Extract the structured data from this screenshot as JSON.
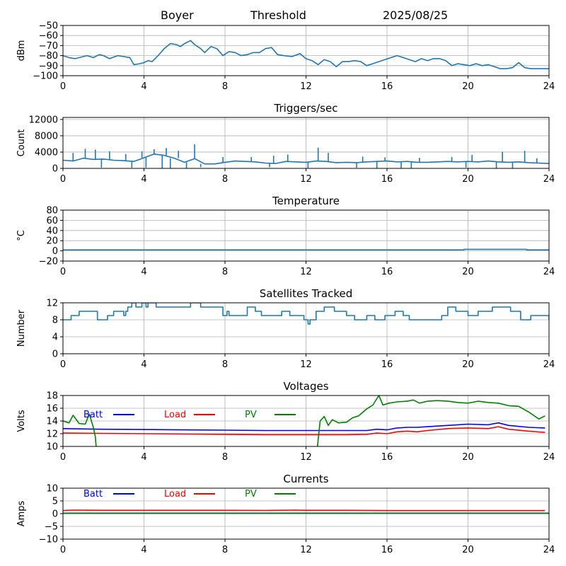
{
  "header": {
    "station": "Boyer",
    "mode": "Threshold",
    "date": "2025/08/25"
  },
  "colors": {
    "series": "#1f77b4",
    "batt": "#0000ff",
    "load": "#ff0000",
    "pv": "#008000",
    "grid": "#b0b0b0"
  },
  "chart_data": [
    {
      "type": "line",
      "title": "",
      "xlabel": "",
      "ylabel": "dBm",
      "xlim": [
        0,
        24
      ],
      "ylim": [
        -100,
        -50
      ],
      "xticks": [
        0,
        4,
        8,
        12,
        16,
        20,
        24
      ],
      "yticks": [
        -100,
        -90,
        -80,
        -70,
        -60,
        -50
      ],
      "grid": true,
      "series": [
        {
          "x": [
            0,
            0.3,
            0.6,
            1,
            1.2,
            1.5,
            1.8,
            2,
            2.3,
            2.7,
            3,
            3.3,
            3.5,
            3.8,
            4,
            4.2,
            4.4,
            4.7,
            5,
            5.3,
            5.6,
            5.8,
            6,
            6.3,
            6.5,
            6.8,
            7,
            7.3,
            7.6,
            7.9,
            8.2,
            8.5,
            8.8,
            9.1,
            9.4,
            9.7,
            10,
            10.3,
            10.6,
            10.9,
            11.3,
            11.7,
            12,
            12.3,
            12.6,
            12.9,
            13.2,
            13.5,
            13.8,
            14.1,
            14.4,
            14.7,
            15,
            15.3,
            15.6,
            15.9,
            16.2,
            16.5,
            16.8,
            17.1,
            17.4,
            17.7,
            18,
            18.3,
            18.6,
            18.9,
            19.2,
            19.5,
            19.8,
            20.1,
            20.4,
            20.7,
            21,
            21.3,
            21.6,
            21.9,
            22.2,
            22.5,
            22.8,
            23.1,
            23.5,
            24
          ],
          "y": [
            -80,
            -82,
            -83,
            -81,
            -80,
            -82,
            -79,
            -80,
            -83,
            -80,
            -81,
            -82,
            -89,
            -88,
            -87,
            -85,
            -86,
            -80,
            -73,
            -68,
            -69,
            -71,
            -68,
            -65,
            -69,
            -73,
            -77,
            -71,
            -73,
            -80,
            -76,
            -77,
            -80,
            -79,
            -77,
            -77,
            -73,
            -72,
            -79,
            -80,
            -81,
            -78,
            -83,
            -85,
            -89,
            -84,
            -86,
            -91,
            -86,
            -86,
            -85,
            -86,
            -90,
            -88,
            -86,
            -84,
            -82,
            -80,
            -82,
            -84,
            -86,
            -83,
            -85,
            -83,
            -83,
            -85,
            -90,
            -88,
            -89,
            -90,
            -88,
            -90,
            -89,
            -91,
            -93,
            -93,
            -92,
            -87,
            -92,
            -93,
            -93,
            -93
          ]
        }
      ]
    },
    {
      "type": "line",
      "title": "Triggers/sec",
      "xlabel": "",
      "ylabel": "Count",
      "xlim": [
        0,
        24
      ],
      "ylim": [
        0,
        12500
      ],
      "xticks": [
        0,
        4,
        8,
        12,
        16,
        20,
        24
      ],
      "yticks": [
        0,
        4000,
        8000,
        12000
      ],
      "yticklabels": [
        "0",
        "4000",
        "8000",
        "12000"
      ],
      "grid": true,
      "series": [
        {
          "x": [
            0,
            0.5,
            1,
            1.5,
            2,
            2.5,
            3,
            3.5,
            4,
            4.5,
            5,
            5.5,
            6,
            6.5,
            7,
            7.5,
            8,
            8.5,
            9,
            9.5,
            10,
            10.5,
            11,
            11.5,
            12,
            12.5,
            13,
            13.5,
            14,
            14.5,
            15,
            15.5,
            16,
            16.5,
            17,
            17.5,
            18,
            18.5,
            19,
            19.5,
            20,
            20.5,
            21,
            21.5,
            22,
            22.5,
            23,
            23.5,
            24
          ],
          "y": [
            2000,
            1800,
            2500,
            2200,
            2300,
            2000,
            1900,
            1700,
            2600,
            3500,
            3200,
            2500,
            1500,
            2400,
            1100,
            1100,
            1500,
            1800,
            1700,
            1600,
            1300,
            1200,
            1700,
            1600,
            1500,
            1800,
            1700,
            1400,
            1500,
            1400,
            1600,
            1700,
            1800,
            1600,
            1700,
            1500,
            1500,
            1600,
            1700,
            1600,
            1700,
            1600,
            1800,
            1600,
            1500,
            1600,
            1400,
            1300,
            1200
          ],
          "spikes": [
            {
              "x": 0.5,
              "y": 3800
            },
            {
              "x": 1.1,
              "y": 4800
            },
            {
              "x": 1.6,
              "y": 4600
            },
            {
              "x": 2.3,
              "y": 4200
            },
            {
              "x": 3.1,
              "y": 3500
            },
            {
              "x": 3.9,
              "y": 4200
            },
            {
              "x": 4.5,
              "y": 4700
            },
            {
              "x": 5.1,
              "y": 5000
            },
            {
              "x": 5.7,
              "y": 4300
            },
            {
              "x": 6.5,
              "y": 5900
            },
            {
              "x": 7.9,
              "y": 2800
            },
            {
              "x": 9.3,
              "y": 2800
            },
            {
              "x": 10.4,
              "y": 3100
            },
            {
              "x": 11.1,
              "y": 3400
            },
            {
              "x": 12.6,
              "y": 5100
            },
            {
              "x": 13.1,
              "y": 3800
            },
            {
              "x": 14.8,
              "y": 2900
            },
            {
              "x": 15.9,
              "y": 2700
            },
            {
              "x": 17.6,
              "y": 2600
            },
            {
              "x": 19.2,
              "y": 2800
            },
            {
              "x": 20.2,
              "y": 3300
            },
            {
              "x": 21.7,
              "y": 4100
            },
            {
              "x": 22.8,
              "y": 4300
            },
            {
              "x": 23.4,
              "y": 2500
            }
          ],
          "dips": [
            {
              "x": 1.9,
              "y": 200
            },
            {
              "x": 3.4,
              "y": 150
            },
            {
              "x": 4.1,
              "y": 200
            },
            {
              "x": 4.9,
              "y": 0
            },
            {
              "x": 5.3,
              "y": 0
            },
            {
              "x": 6.1,
              "y": 0
            },
            {
              "x": 6.8,
              "y": 300
            },
            {
              "x": 10.2,
              "y": 300
            },
            {
              "x": 12.1,
              "y": 100
            },
            {
              "x": 14.5,
              "y": 150
            },
            {
              "x": 15.5,
              "y": 0
            },
            {
              "x": 16.7,
              "y": 100
            },
            {
              "x": 17.2,
              "y": 0
            },
            {
              "x": 19.9,
              "y": 200
            },
            {
              "x": 21.4,
              "y": 0
            },
            {
              "x": 22.2,
              "y": 0
            }
          ]
        }
      ]
    },
    {
      "type": "line",
      "title": "Temperature",
      "xlabel": "",
      "ylabel": "°C",
      "xlim": [
        0,
        24
      ],
      "ylim": [
        -20,
        80
      ],
      "xticks": [
        0,
        4,
        8,
        12,
        16,
        20,
        24
      ],
      "yticks": [
        -20,
        0,
        20,
        40,
        60,
        80
      ],
      "grid": true,
      "series": [
        {
          "x": [
            0,
            19.8,
            19.8,
            22.9,
            22.9,
            24
          ],
          "y": [
            2,
            2,
            3,
            3,
            2,
            2
          ]
        }
      ]
    },
    {
      "type": "line",
      "title": "Satellites Tracked",
      "xlabel": "",
      "ylabel": "Number",
      "xlim": [
        0,
        24
      ],
      "ylim": [
        0,
        12
      ],
      "xticks": [
        0,
        4,
        8,
        12,
        16,
        20,
        24
      ],
      "yticks": [
        0,
        4,
        8,
        12
      ],
      "grid": true,
      "series": [
        {
          "step": true,
          "x": [
            0,
            0.4,
            0.8,
            1.2,
            1.7,
            2.2,
            2.5,
            3,
            3.1,
            3.2,
            3.4,
            3.6,
            3.9,
            4.1,
            4.2,
            4.6,
            5,
            5.6,
            6.3,
            6.8,
            7,
            7.3,
            7.9,
            8.1,
            8.2,
            8.5,
            9.1,
            9.5,
            9.8,
            10.2,
            10.8,
            11.2,
            11.8,
            11.9,
            12.1,
            12.2,
            12.5,
            12.9,
            13.4,
            14,
            14.4,
            15,
            15.4,
            15.9,
            16.4,
            16.8,
            17.1,
            17.7,
            18.7,
            19,
            19.4,
            20,
            20.5,
            21.2,
            22.1,
            22.6,
            23.1,
            23.8,
            24
          ],
          "y": [
            8,
            9,
            10,
            10,
            8,
            9,
            10,
            9,
            10,
            11,
            12,
            11,
            12,
            11,
            12,
            11,
            11,
            11,
            12,
            11,
            11,
            11,
            9,
            10,
            9,
            9,
            11,
            10,
            9,
            9,
            10,
            9,
            9,
            8,
            7,
            8,
            10,
            11,
            10,
            9,
            8,
            9,
            8,
            9,
            10,
            9,
            8,
            8,
            9,
            11,
            10,
            9,
            10,
            11,
            10,
            8,
            9,
            9,
            8
          ]
        }
      ]
    },
    {
      "type": "line",
      "title": "Voltages",
      "xlabel": "",
      "ylabel": "Volts",
      "xlim": [
        0,
        24
      ],
      "ylim": [
        10,
        18
      ],
      "xticks": [
        0,
        4,
        8,
        12,
        16,
        20,
        24
      ],
      "yticks": [
        10,
        12,
        14,
        16,
        18
      ],
      "grid": true,
      "legend": "top-left",
      "series": [
        {
          "name": "Batt",
          "color": "#0000ff",
          "x": [
            0,
            2,
            4,
            6,
            8,
            10,
            11.5,
            12,
            13,
            14,
            15,
            15.5,
            16,
            16.5,
            17,
            17.5,
            18,
            19,
            20,
            21,
            21.5,
            22,
            23,
            23.8
          ],
          "y": [
            12.8,
            12.7,
            12.65,
            12.6,
            12.55,
            12.5,
            12.5,
            12.5,
            12.5,
            12.5,
            12.5,
            12.7,
            12.6,
            12.9,
            13.0,
            13.0,
            13.1,
            13.3,
            13.5,
            13.4,
            13.7,
            13.3,
            13.0,
            12.9
          ]
        },
        {
          "name": "Load",
          "color": "#ff0000",
          "x": [
            0,
            2,
            4,
            6,
            8,
            10,
            11.5,
            12,
            13,
            14,
            15,
            15.5,
            16,
            16.5,
            17,
            17.5,
            18,
            19,
            20,
            21,
            21.5,
            22,
            23,
            23.8
          ],
          "y": [
            12.1,
            12.05,
            12.0,
            11.95,
            11.9,
            11.85,
            11.85,
            11.85,
            11.85,
            11.85,
            11.9,
            12.1,
            12.0,
            12.3,
            12.4,
            12.3,
            12.5,
            12.8,
            12.9,
            12.8,
            13.1,
            12.7,
            12.4,
            12.2
          ]
        },
        {
          "name": "PV",
          "color": "#008000",
          "x": [
            0,
            0.3,
            0.5,
            0.8,
            1.1,
            1.3,
            1.5,
            1.6,
            1.65,
            12.55,
            12.7,
            12.9,
            13.1,
            13.3,
            13.6,
            14,
            14.3,
            14.6,
            15,
            15.3,
            15.6,
            15.8,
            16.1,
            16.5,
            17,
            17.3,
            17.6,
            18,
            18.5,
            19,
            19.5,
            20,
            20.5,
            21,
            21.5,
            22,
            22.5,
            23,
            23.5,
            23.8
          ],
          "y": [
            14.0,
            13.7,
            14.9,
            13.6,
            13.5,
            15.1,
            13.0,
            11.5,
            9.5,
            9.5,
            14.0,
            14.7,
            13.3,
            14.2,
            13.7,
            13.8,
            14.5,
            14.8,
            15.9,
            16.5,
            18.0,
            16.5,
            16.8,
            17.0,
            17.1,
            17.3,
            16.8,
            17.1,
            17.2,
            17.1,
            16.9,
            16.8,
            17.1,
            16.9,
            16.8,
            16.4,
            16.3,
            15.4,
            14.3,
            14.8
          ]
        }
      ]
    },
    {
      "type": "line",
      "title": "Currents",
      "xlabel": "",
      "ylabel": "Amps",
      "xlim": [
        0,
        24
      ],
      "ylim": [
        -10,
        10
      ],
      "xticks": [
        0,
        4,
        8,
        12,
        16,
        20,
        24
      ],
      "yticks": [
        -10,
        -5,
        0,
        5,
        10
      ],
      "grid": true,
      "legend": "top-left",
      "series": [
        {
          "name": "Batt",
          "color": "#0000ff",
          "x": [
            0,
            24
          ],
          "y": [
            0.2,
            0.2
          ]
        },
        {
          "name": "Load",
          "color": "#ff0000",
          "x": [
            0,
            0.5,
            2,
            4,
            6,
            8,
            10,
            11.5,
            12,
            14,
            16,
            18,
            20,
            22,
            23.8
          ],
          "y": [
            1.2,
            1.4,
            1.3,
            1.3,
            1.3,
            1.3,
            1.25,
            1.4,
            1.3,
            1.3,
            1.2,
            1.2,
            1.2,
            1.2,
            1.2
          ]
        },
        {
          "name": "PV",
          "color": "#008000",
          "x": [
            0,
            24
          ],
          "y": [
            0.1,
            0.1
          ]
        }
      ]
    }
  ]
}
